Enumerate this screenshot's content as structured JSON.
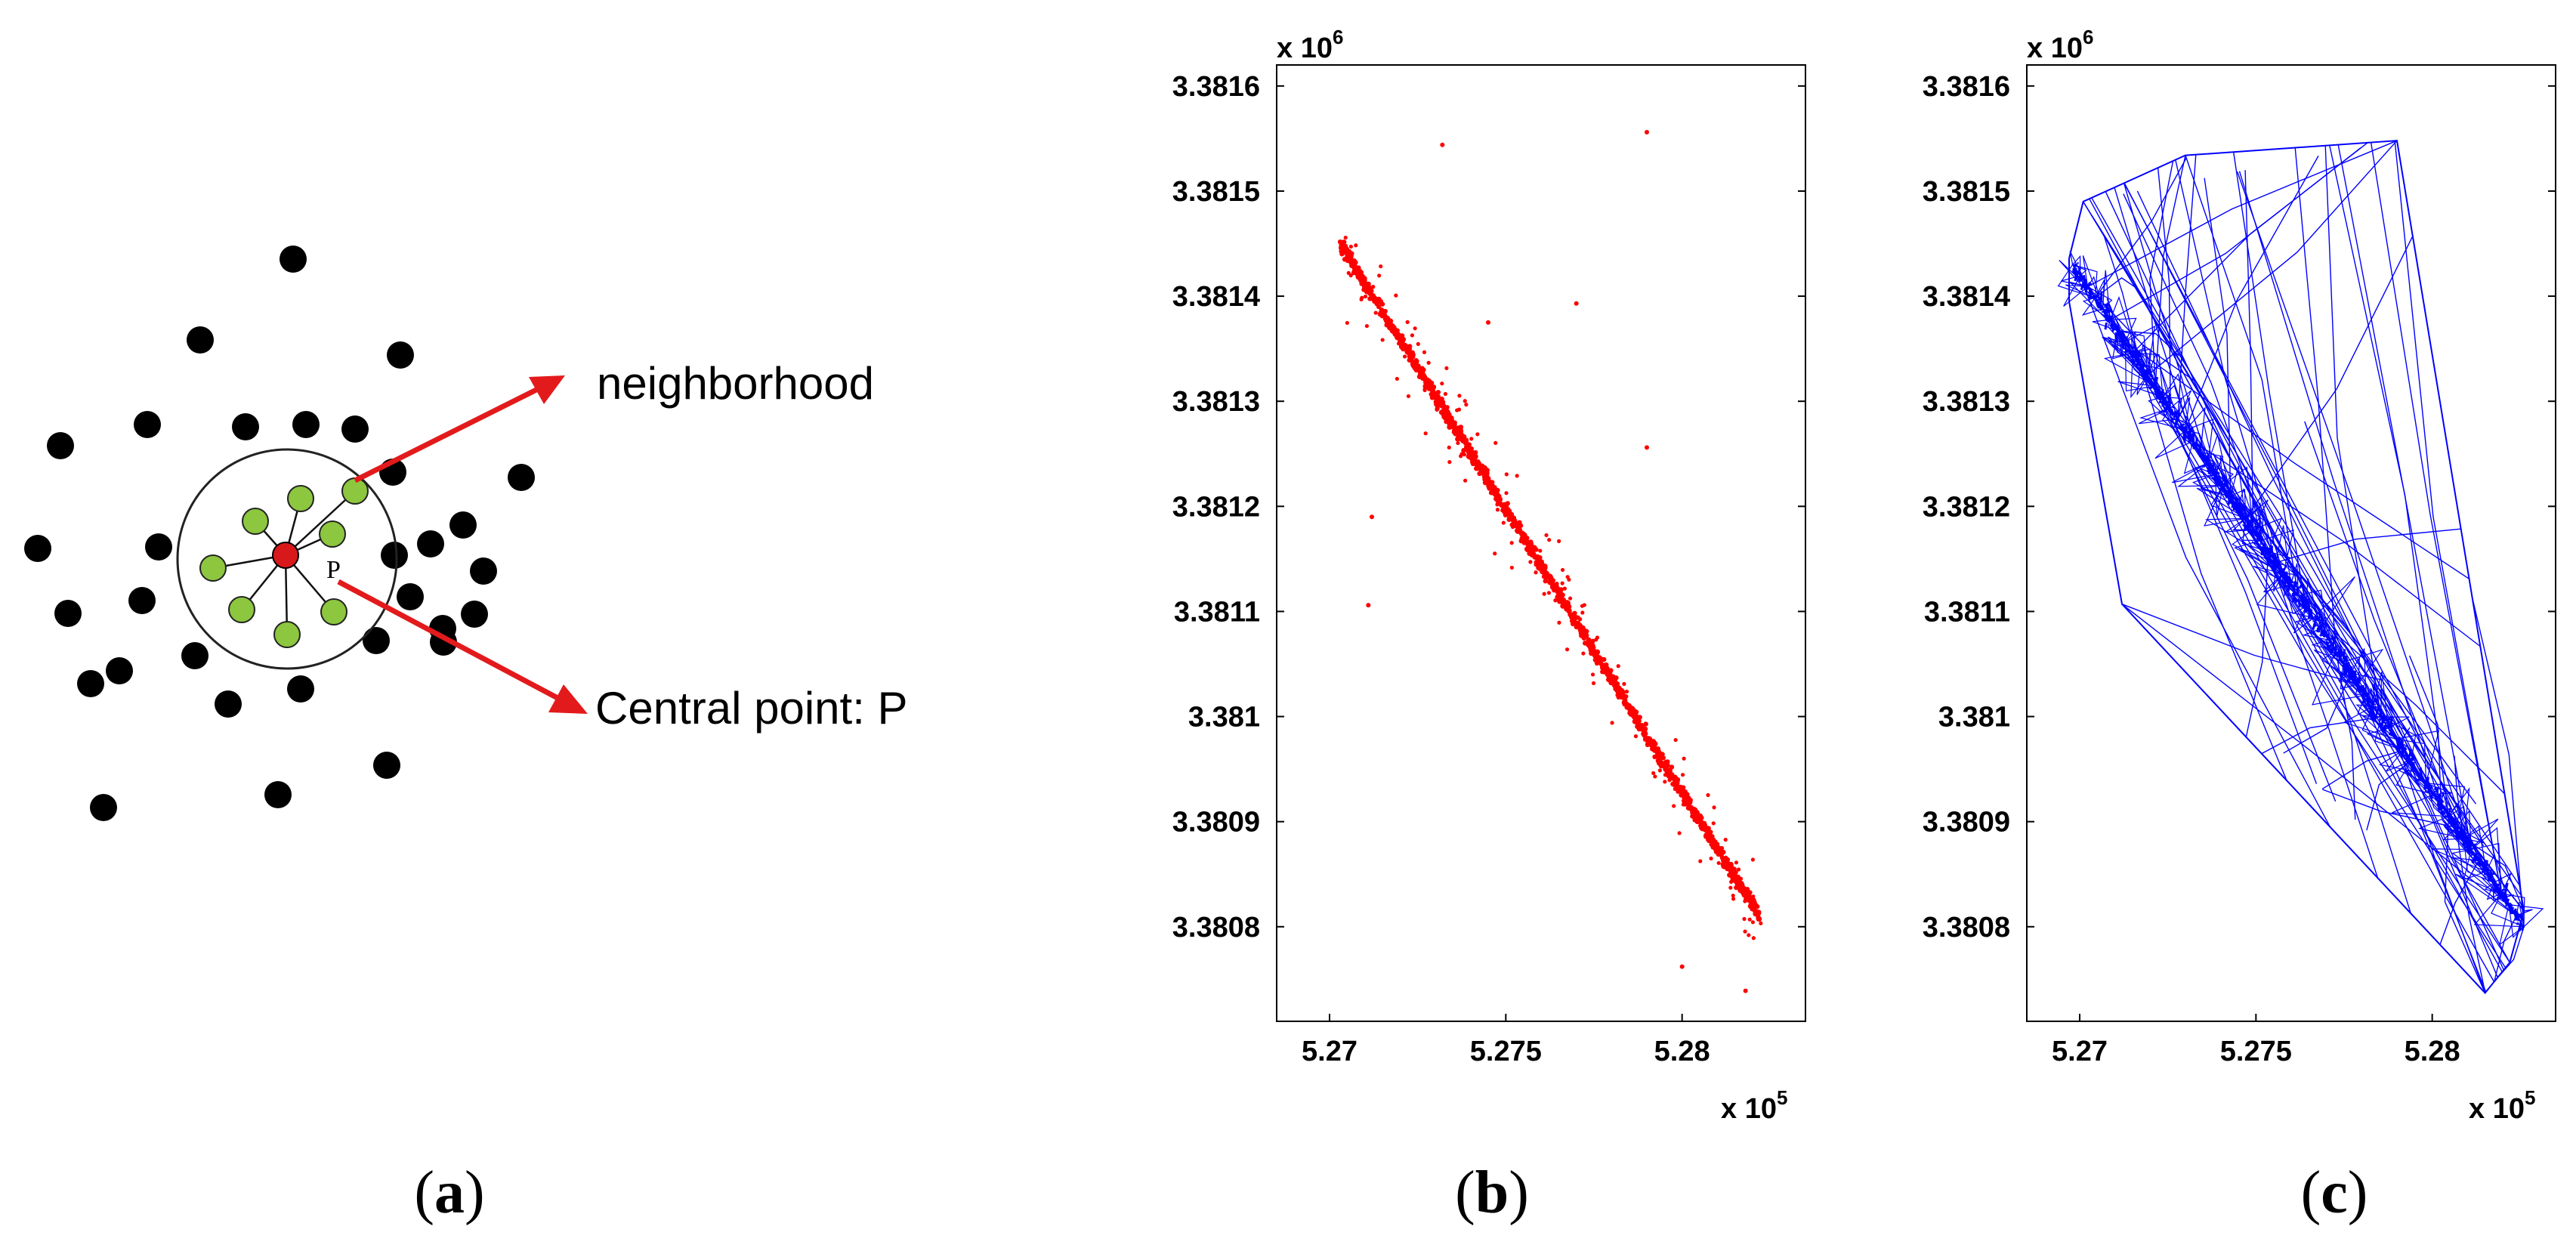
{
  "panels": {
    "a": {
      "label_open": "(",
      "label_letter": "a",
      "label_close": ")",
      "annotations": {
        "neighborhood": "neighborhood",
        "central_point": "Central point: P",
        "p_marker": "P"
      },
      "colors": {
        "points": "#000000",
        "neighbors": "#8dc63f",
        "central": "#d7191c",
        "arrow": "#e31a1c"
      }
    },
    "b": {
      "label_open": "(",
      "label_letter": "b",
      "label_close": ")",
      "x_exponent": "x 10",
      "x_exponent_power": "5",
      "y_exponent": "x 10",
      "y_exponent_power": "6"
    },
    "c": {
      "label_open": "(",
      "label_letter": "c",
      "label_close": ")",
      "x_exponent": "x 10",
      "x_exponent_power": "5",
      "y_exponent": "x 10",
      "y_exponent_power": "6"
    }
  },
  "chart_data": [
    {
      "type": "scatter",
      "panel": "b",
      "description_color": "#ff0000",
      "xlim": [
        5.2685,
        5.2835
      ],
      "ylim": [
        3.38071,
        3.38162
      ],
      "x_ticks": [
        5.27,
        5.275,
        5.28
      ],
      "x_tick_labels": [
        "5.27",
        "5.275",
        "5.28"
      ],
      "y_ticks": [
        3.3808,
        3.3809,
        3.381,
        3.3811,
        3.3812,
        3.3813,
        3.3814,
        3.3815,
        3.3816
      ],
      "y_tick_labels": [
        "3.3808",
        "3.3809",
        "3.381",
        "3.3811",
        "3.3812",
        "3.3813",
        "3.3814",
        "3.3815",
        "3.3816"
      ],
      "main_trend": {
        "start": [
          5.2703,
          3.38145
        ],
        "end": [
          5.2822,
          3.38081
        ]
      },
      "outliers": [
        [
          5.279,
          3.381556
        ],
        [
          5.2732,
          3.381544
        ],
        [
          5.2712,
          3.38119
        ],
        [
          5.2711,
          3.381106
        ],
        [
          5.279,
          3.381256
        ],
        [
          5.28,
          3.380762
        ],
        [
          5.2818,
          3.380739
        ],
        [
          5.277,
          3.381393
        ],
        [
          5.2745,
          3.381375
        ]
      ]
    },
    {
      "type": "triangulation",
      "panel": "c",
      "description_color": "#0000ff",
      "xlim": [
        5.2685,
        5.2835
      ],
      "ylim": [
        3.38071,
        3.38162
      ],
      "x_ticks": [
        5.27,
        5.275,
        5.28
      ],
      "x_tick_labels": [
        "5.27",
        "5.275",
        "5.28"
      ],
      "y_ticks": [
        3.3808,
        3.3809,
        3.381,
        3.3811,
        3.3812,
        3.3813,
        3.3814,
        3.3815,
        3.3816
      ],
      "y_tick_labels": [
        "3.3808",
        "3.3809",
        "3.381",
        "3.3811",
        "3.3812",
        "3.3813",
        "3.3814",
        "3.3815",
        "3.3816"
      ],
      "main_trend": {
        "start": [
          5.2698,
          3.38143
        ],
        "end": [
          5.2826,
          3.3808
        ]
      },
      "hull": [
        [
          5.2697,
          3.381436
        ],
        [
          5.2701,
          3.38149
        ],
        [
          5.273,
          3.381534
        ],
        [
          5.279,
          3.381548
        ],
        [
          5.2826,
          3.380815
        ],
        [
          5.2822,
          3.380766
        ],
        [
          5.2815,
          3.380737
        ],
        [
          5.2712,
          3.381107
        ],
        [
          5.2697,
          3.381395
        ]
      ]
    }
  ]
}
